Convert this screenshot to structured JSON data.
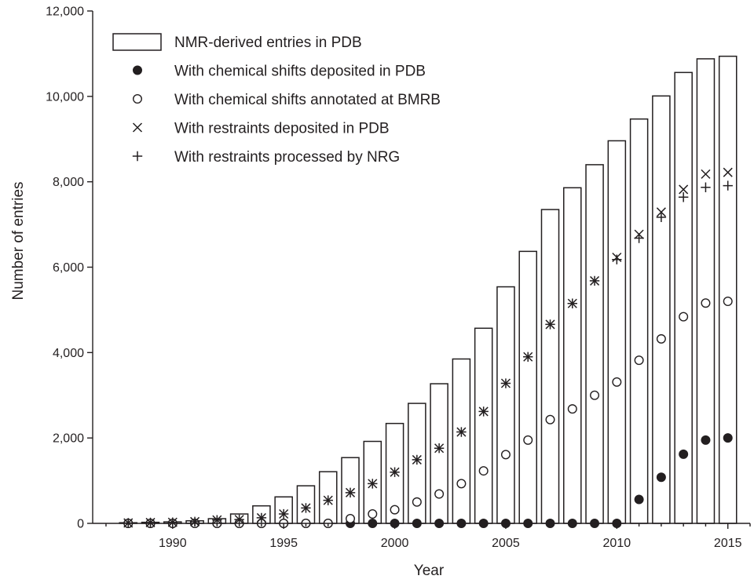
{
  "chart_data": {
    "type": "bar",
    "xlabel": "Year",
    "ylabel": "Number of entries",
    "ylim": [
      0,
      12000
    ],
    "xlim": [
      1986.4,
      2016.0
    ],
    "grid": false,
    "legend_position": "top-left",
    "x": [
      1988,
      1989,
      1990,
      1991,
      1992,
      1993,
      1994,
      1995,
      1996,
      1997,
      1998,
      1999,
      2000,
      2001,
      2002,
      2003,
      2004,
      2005,
      2006,
      2007,
      2008,
      2009,
      2010,
      2011,
      2012,
      2013,
      2014,
      2015
    ],
    "x_ticks": [
      {
        "value": 1990,
        "label": "1990"
      },
      {
        "value": 1995,
        "label": "1995"
      },
      {
        "value": 2000,
        "label": "2000"
      },
      {
        "value": 2005,
        "label": "2005"
      },
      {
        "value": 2010,
        "label": "2010"
      },
      {
        "value": 2015,
        "label": "2015"
      }
    ],
    "y_ticks": [
      {
        "value": 0,
        "label": "0"
      },
      {
        "value": 2000,
        "label": "2,000"
      },
      {
        "value": 4000,
        "label": "4,000"
      },
      {
        "value": 6000,
        "label": "6,000"
      },
      {
        "value": 8000,
        "label": "8,000"
      },
      {
        "value": 10000,
        "label": "10,000"
      },
      {
        "value": 12000,
        "label": "12,000"
      }
    ],
    "series": [
      {
        "name": "NMR-derived entries in PDB",
        "marker": "bar",
        "values": [
          15,
          25,
          35,
          60,
          110,
          220,
          410,
          620,
          880,
          1210,
          1540,
          1920,
          2340,
          2810,
          3270,
          3850,
          4570,
          5540,
          6370,
          7350,
          7860,
          8400,
          8960,
          9470,
          10010,
          10560,
          10880,
          10940
        ]
      },
      {
        "name": "With chemical shifts deposited in PDB",
        "marker": "filled-circle",
        "values": [
          0,
          0,
          0,
          0,
          0,
          0,
          0,
          0,
          0,
          0,
          0,
          0,
          0,
          0,
          0,
          0,
          0,
          0,
          0,
          0,
          0,
          0,
          0,
          560,
          1080,
          1620,
          1950,
          2000
        ]
      },
      {
        "name": "With chemical shifts annotated at BMRB",
        "marker": "open-circle",
        "values": [
          0,
          0,
          0,
          0,
          0,
          0,
          0,
          0,
          0,
          0,
          110,
          220,
          320,
          500,
          690,
          930,
          1230,
          1610,
          1950,
          2430,
          2680,
          3000,
          3310,
          3820,
          4320,
          4840,
          5160,
          5200
        ]
      },
      {
        "name": "With restraints deposited in PDB",
        "marker": "x",
        "values": [
          10,
          20,
          25,
          40,
          80,
          90,
          130,
          220,
          360,
          540,
          720,
          930,
          1200,
          1490,
          1760,
          2140,
          2620,
          3280,
          3900,
          4660,
          5150,
          5680,
          6230,
          6770,
          7290,
          7820,
          8180,
          8220
        ]
      },
      {
        "name": "With restraints processed by NRG",
        "marker": "plus",
        "values": [
          10,
          20,
          25,
          40,
          80,
          90,
          130,
          220,
          360,
          540,
          720,
          930,
          1200,
          1490,
          1760,
          2140,
          2620,
          3280,
          3900,
          4660,
          5150,
          5680,
          6180,
          6680,
          7170,
          7640,
          7870,
          7910
        ]
      }
    ]
  }
}
